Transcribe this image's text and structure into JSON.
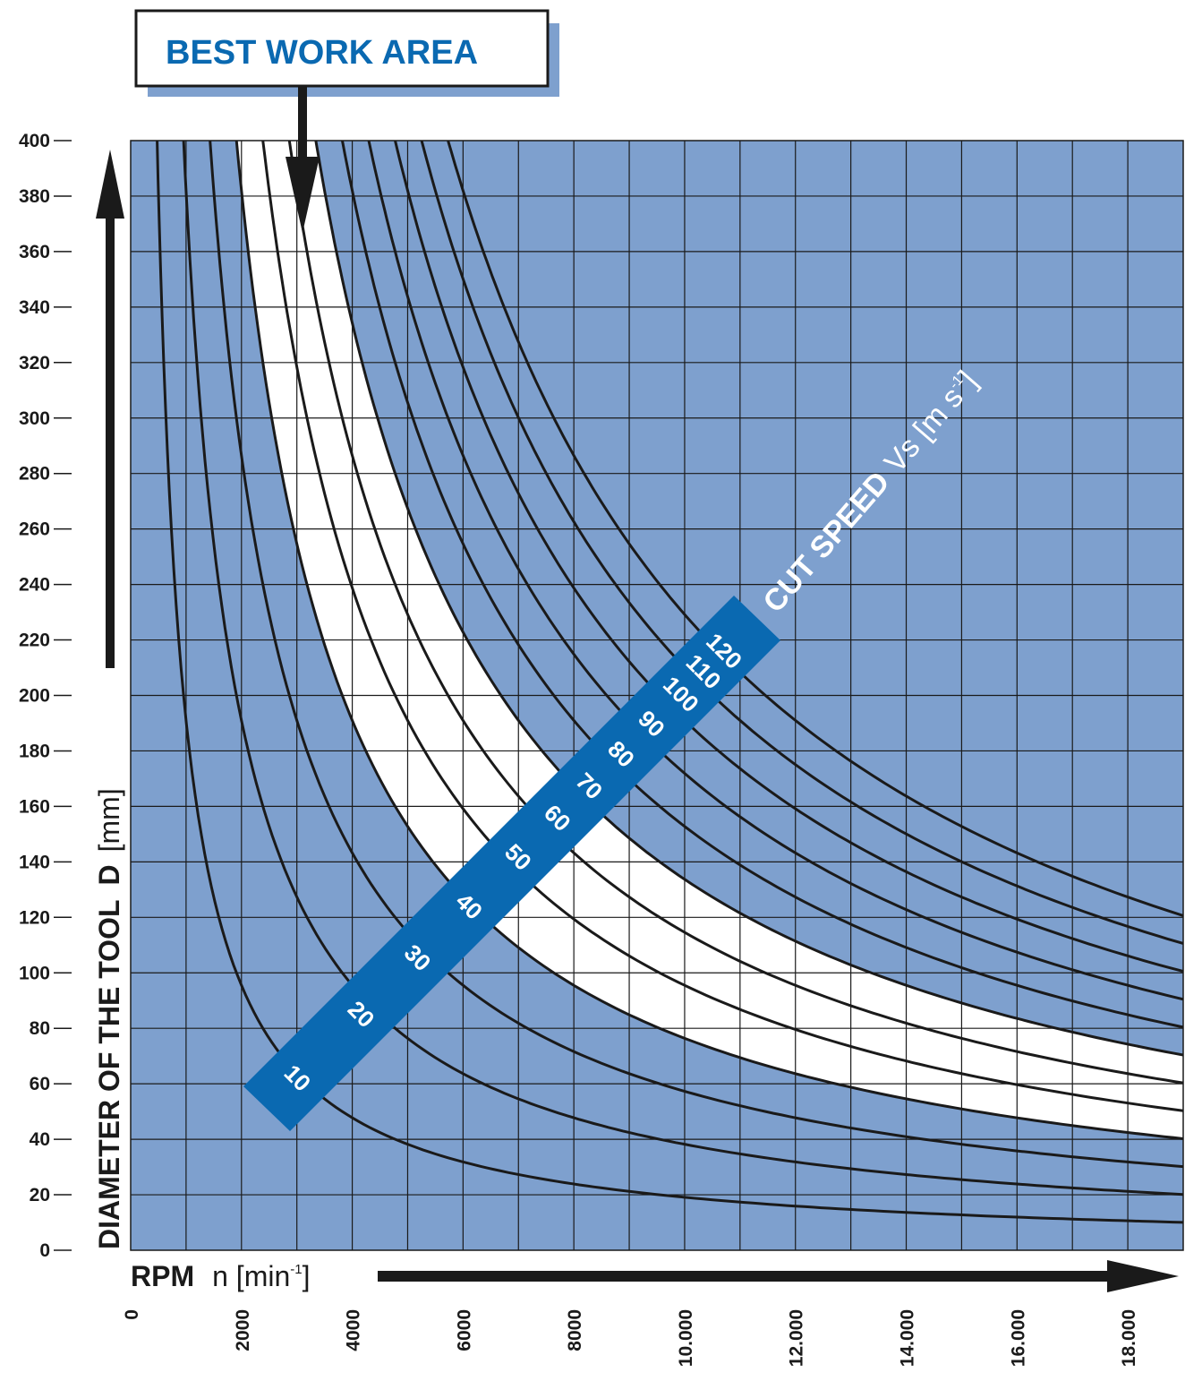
{
  "chart_data": {
    "type": "line",
    "title": "",
    "callout": "BEST WORK AREA",
    "xlabel_prefix": "RPM",
    "xlabel_var": "n [min",
    "xlabel_exp": "-1",
    "xlabel_close": "]",
    "ylabel": "DIAMETER OF THE TOOL",
    "ylabel_var": "D",
    "ylabel_unit": "[mm]",
    "speed_label": "CUT SPEED",
    "speed_unit": "Vs [m s",
    "speed_exp": "-1",
    "speed_close": "]",
    "xlim": [
      0,
      19000
    ],
    "ylim": [
      0,
      400
    ],
    "x_ticks": [
      {
        "value": 0,
        "label": "0"
      },
      {
        "value": 2000,
        "label": "2000"
      },
      {
        "value": 4000,
        "label": "4000"
      },
      {
        "value": 6000,
        "label": "6000"
      },
      {
        "value": 8000,
        "label": "8000"
      },
      {
        "value": 10000,
        "label": "10.000"
      },
      {
        "value": 12000,
        "label": "12.000"
      },
      {
        "value": 14000,
        "label": "14.000"
      },
      {
        "value": 16000,
        "label": "16.000"
      },
      {
        "value": 18000,
        "label": "18.000"
      }
    ],
    "y_ticks": [
      0,
      20,
      40,
      60,
      80,
      100,
      120,
      140,
      160,
      180,
      200,
      220,
      240,
      260,
      280,
      300,
      320,
      340,
      360,
      380,
      400
    ],
    "x_grid_step": 1000,
    "grid": true,
    "formula": "D = 60000 * Vs / (pi * n)",
    "series": [
      {
        "name": "10",
        "vs": 10
      },
      {
        "name": "20",
        "vs": 20
      },
      {
        "name": "30",
        "vs": 30
      },
      {
        "name": "40",
        "vs": 40
      },
      {
        "name": "50",
        "vs": 50
      },
      {
        "name": "60",
        "vs": 60
      },
      {
        "name": "70",
        "vs": 70
      },
      {
        "name": "80",
        "vs": 80
      },
      {
        "name": "90",
        "vs": 90
      },
      {
        "name": "100",
        "vs": 100
      },
      {
        "name": "110",
        "vs": 110
      },
      {
        "name": "120",
        "vs": 120
      }
    ],
    "best_work_area": {
      "vs_min": 40,
      "vs_max": 70
    }
  },
  "colors": {
    "plot_background": "#7ea0ce",
    "best_area": "#ffffff",
    "band": "#0a69b1",
    "curve": "#1a1a1a",
    "callout_shadow": "#7ea0ce",
    "callout_text": "#0a69b1"
  }
}
